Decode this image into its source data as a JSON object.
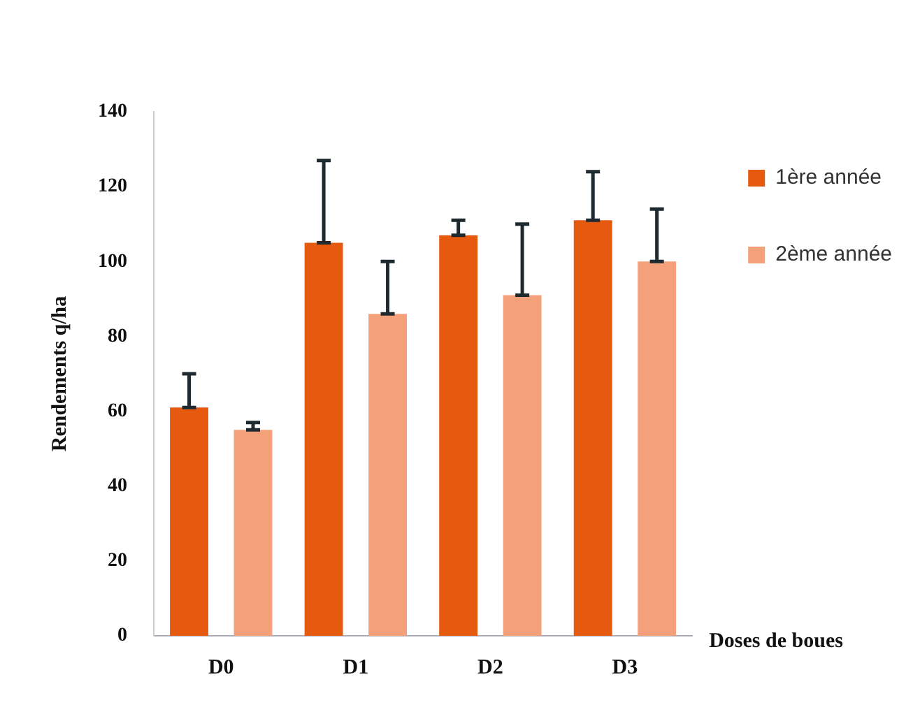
{
  "chart_data": {
    "type": "bar",
    "xlabel": "Doses de boues",
    "ylabel": "Rendements q/ha",
    "categories": [
      "D0",
      "D1",
      "D2",
      "D3"
    ],
    "series": [
      {
        "name": "1ère année",
        "color": "#e65a10",
        "values": [
          61,
          105,
          107,
          111
        ],
        "errors": [
          [
            61,
            70
          ],
          [
            105,
            127
          ],
          [
            107,
            111
          ],
          [
            111,
            124
          ]
        ]
      },
      {
        "name": "2ème année",
        "color": "#f4a07a",
        "values": [
          55,
          86,
          91,
          100
        ],
        "errors": [
          [
            55,
            57
          ],
          [
            86,
            100
          ],
          [
            91,
            110
          ],
          [
            100,
            114
          ]
        ]
      }
    ],
    "ylim": [
      0,
      140
    ],
    "yticks": [
      0,
      20,
      40,
      60,
      80,
      100,
      120,
      140
    ],
    "grid": false,
    "legend": "top right"
  }
}
